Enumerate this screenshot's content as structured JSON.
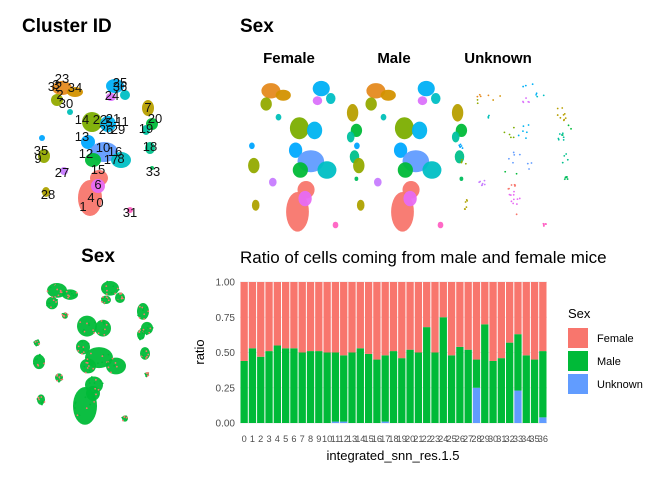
{
  "panels": {
    "cluster": {
      "title": "Cluster ID",
      "labels": [
        "0",
        "1",
        "2",
        "3",
        "4",
        "5",
        "6",
        "7",
        "8",
        "9",
        "10",
        "11",
        "12",
        "13",
        "14",
        "15",
        "16",
        "17",
        "18",
        "19",
        "20",
        "21",
        "22",
        "23",
        "24",
        "25",
        "26",
        "27",
        "28",
        "29",
        "30",
        "31",
        "32",
        "33",
        "34",
        "35",
        "36"
      ]
    },
    "sex_facets": {
      "title": "Sex",
      "facets": [
        "Female",
        "Male",
        "Unknown"
      ]
    },
    "sex_overlay": {
      "title": "Sex"
    }
  },
  "colors": {
    "Female": "#F8766D",
    "Male": "#00BA38",
    "Unknown": "#619CFF",
    "gridline": "#ebebeb"
  },
  "chart_data": {
    "type": "bar",
    "stacked": true,
    "title": "Ratio of cells coming from male and female mice",
    "xlabel": "integrated_snn_res.1.5",
    "ylabel": "ratio",
    "ylim": [
      0,
      1
    ],
    "yticks": [
      "0.00",
      "0.25",
      "0.50",
      "0.75",
      "1.00"
    ],
    "categories": [
      "0",
      "1",
      "2",
      "3",
      "4",
      "5",
      "6",
      "7",
      "8",
      "9",
      "10",
      "11",
      "12",
      "13",
      "14",
      "15",
      "16",
      "17",
      "18",
      "19",
      "20",
      "21",
      "22",
      "23",
      "24",
      "25",
      "26",
      "27",
      "28",
      "29",
      "30",
      "31",
      "32",
      "33",
      "34",
      "35",
      "36"
    ],
    "series": [
      {
        "name": "Unknown",
        "values": [
          0.0,
          0.0,
          0.0,
          0.0,
          0.0,
          0.0,
          0.0,
          0.0,
          0.0,
          0.0,
          0.0,
          0.01,
          0.01,
          0.0,
          0.0,
          0.0,
          0.0,
          0.01,
          0.0,
          0.0,
          0.0,
          0.0,
          0.0,
          0.0,
          0.0,
          0.0,
          0.0,
          0.0,
          0.25,
          0.0,
          0.0,
          0.0,
          0.0,
          0.23,
          0.0,
          0.0,
          0.04
        ]
      },
      {
        "name": "Male",
        "values": [
          0.44,
          0.53,
          0.47,
          0.51,
          0.55,
          0.53,
          0.53,
          0.5,
          0.51,
          0.51,
          0.5,
          0.49,
          0.47,
          0.5,
          0.53,
          0.49,
          0.45,
          0.47,
          0.51,
          0.46,
          0.52,
          0.5,
          0.68,
          0.5,
          0.75,
          0.48,
          0.54,
          0.52,
          0.2,
          0.7,
          0.44,
          0.46,
          0.57,
          0.4,
          0.48,
          0.45,
          0.47
        ]
      },
      {
        "name": "Female",
        "values": [
          0.56,
          0.47,
          0.53,
          0.49,
          0.45,
          0.47,
          0.47,
          0.5,
          0.49,
          0.49,
          0.5,
          0.5,
          0.52,
          0.5,
          0.47,
          0.51,
          0.55,
          0.52,
          0.49,
          0.54,
          0.48,
          0.5,
          0.32,
          0.5,
          0.25,
          0.52,
          0.46,
          0.48,
          0.55,
          0.3,
          0.56,
          0.54,
          0.43,
          0.37,
          0.52,
          0.55,
          0.49
        ]
      }
    ],
    "legend": {
      "title": "Sex",
      "entries": [
        "Female",
        "Male",
        "Unknown"
      ],
      "placement": "right"
    }
  }
}
